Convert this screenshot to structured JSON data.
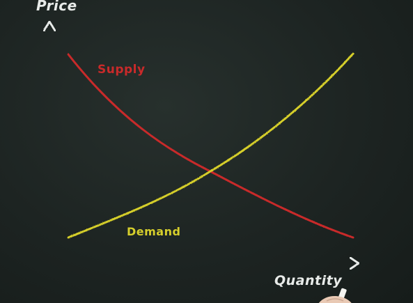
{
  "diagram": {
    "y_axis_label": "Price",
    "x_axis_label": "Quantity",
    "supply_label": "Supply",
    "demand_label": "Demand",
    "colors": {
      "background": "#1d2422",
      "axes": "#e8ebe9",
      "supply": "#c92a2a",
      "demand": "#d6cf2c",
      "guides": "#e8ebe9"
    }
  }
}
